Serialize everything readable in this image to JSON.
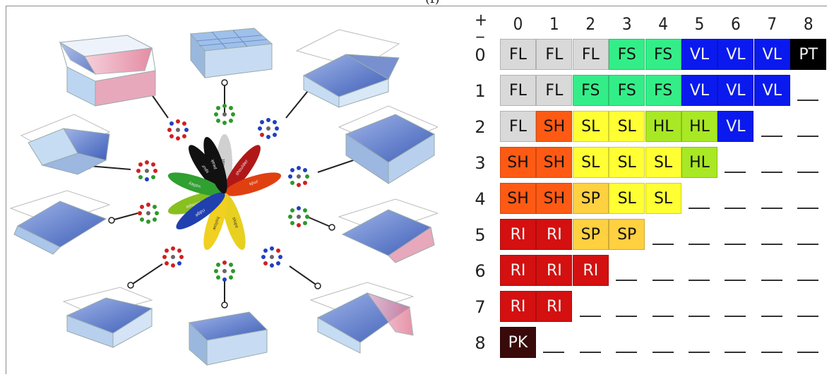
{
  "top_glyph": "(f)",
  "table": {
    "corner_plus": "+",
    "corner_minus": "_",
    "col_headers": [
      "0",
      "1",
      "2",
      "3",
      "4",
      "5",
      "6",
      "7",
      "8"
    ],
    "row_headers": [
      "0",
      "1",
      "2",
      "3",
      "4",
      "5",
      "6",
      "7",
      "8"
    ],
    "rows": [
      [
        "FL",
        "FL",
        "FL",
        "FS",
        "FS",
        "VL",
        "VL",
        "VL",
        "PT"
      ],
      [
        "FL",
        "FL",
        "FS",
        "FS",
        "FS",
        "VL",
        "VL",
        "VL",
        "_"
      ],
      [
        "FL",
        "SH",
        "SL",
        "SL",
        "HL",
        "HL",
        "VL",
        "_",
        "_"
      ],
      [
        "SH",
        "SH",
        "SL",
        "SL",
        "SL",
        "HL",
        "_",
        "_",
        "_"
      ],
      [
        "SH",
        "SH",
        "SP",
        "SL",
        "SL",
        "_",
        "_",
        "_",
        "_"
      ],
      [
        "RI",
        "RI",
        "SP",
        "SP",
        "_",
        "_",
        "_",
        "_",
        "_"
      ],
      [
        "RI",
        "RI",
        "RI",
        "_",
        "_",
        "_",
        "_",
        "_",
        "_"
      ],
      [
        "RI",
        "RI",
        "_",
        "_",
        "_",
        "_",
        "_",
        "_",
        "_"
      ],
      [
        "PK",
        "_",
        "_",
        "_",
        "_",
        "_",
        "_",
        "_",
        "_"
      ]
    ],
    "colors": {
      "FL": "#d9d9d9",
      "FS": "#33ee88",
      "VL": "#0a1aee",
      "PT": "#000000",
      "SH": "#ff5a14",
      "SL": "#ffff33",
      "HL": "#a8e824",
      "SP": "#ffd040",
      "RI": "#d41010",
      "PK": "#3a0a0a"
    },
    "dark_text": [
      "VL",
      "PT",
      "RI",
      "PK"
    ]
  },
  "flower": {
    "petals": [
      {
        "label": "flat",
        "color": "#d0d0d0"
      },
      {
        "label": "spur",
        "color": "#111111"
      },
      {
        "label": "shoulder",
        "color": "#b01818"
      },
      {
        "label": "spur",
        "color": "#e04010"
      },
      {
        "label": "slope",
        "color": "#e8d020"
      },
      {
        "label": "hollow",
        "color": "#f0d020"
      },
      {
        "label": "footslope",
        "color": "#88c020"
      },
      {
        "label": "valley",
        "color": "#30a030"
      },
      {
        "label": "ridge",
        "color": "#2040b0"
      },
      {
        "label": "peak",
        "color": "#111111"
      }
    ]
  }
}
